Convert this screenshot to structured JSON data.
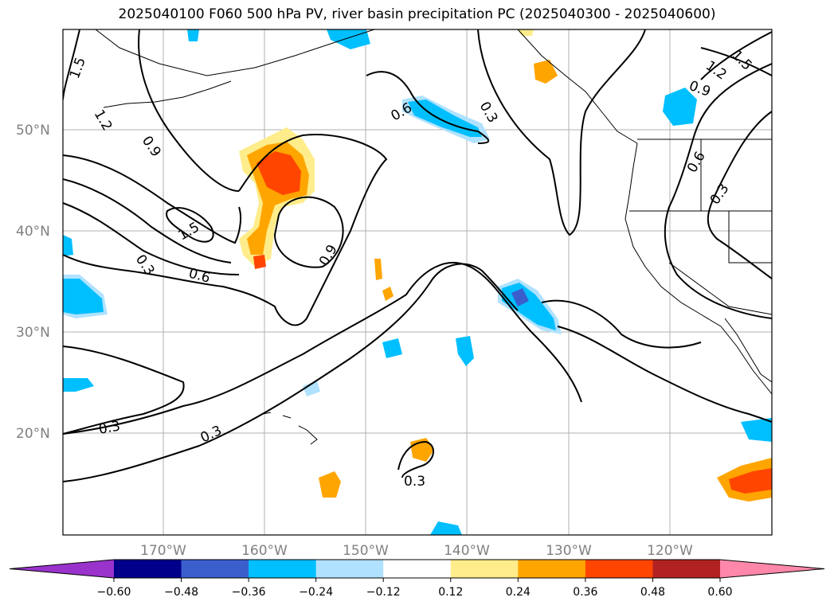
{
  "title": "2025040100 F060 500 hPa PV, river basin precipitation PC (2025040300 - 2025040600)",
  "lat_ticks": [
    "50°N",
    "40°N",
    "30°N",
    "20°N"
  ],
  "lon_ticks": [
    "170°W",
    "160°W",
    "150°W",
    "140°W",
    "130°W",
    "120°W"
  ],
  "contour_labels": [
    "1.5",
    "1.2",
    "0.9",
    "0.3",
    "1.5",
    "0.6",
    "0.9",
    "0.6",
    "0.3",
    "1.5",
    "1.2",
    "0.9",
    "0.6",
    "0.3",
    "0.3",
    "0.3",
    "0.3"
  ],
  "colorbar": {
    "ticks": [
      "−0.60",
      "−0.48",
      "−0.36",
      "−0.24",
      "−0.12",
      "0.12",
      "0.24",
      "0.36",
      "0.48",
      "0.60"
    ],
    "colors": [
      "#9933cc",
      "#00008b",
      "#3a5fcd",
      "#00bfff",
      "#b0e2ff",
      "#ffffff",
      "#ffec8b",
      "#ffa500",
      "#ff4500",
      "#b22222",
      "#ff88aa"
    ]
  },
  "colors": {
    "contour": "#000000",
    "coast": "#000000",
    "grid": "#b0b0b0",
    "tick_text": "#808080"
  }
}
